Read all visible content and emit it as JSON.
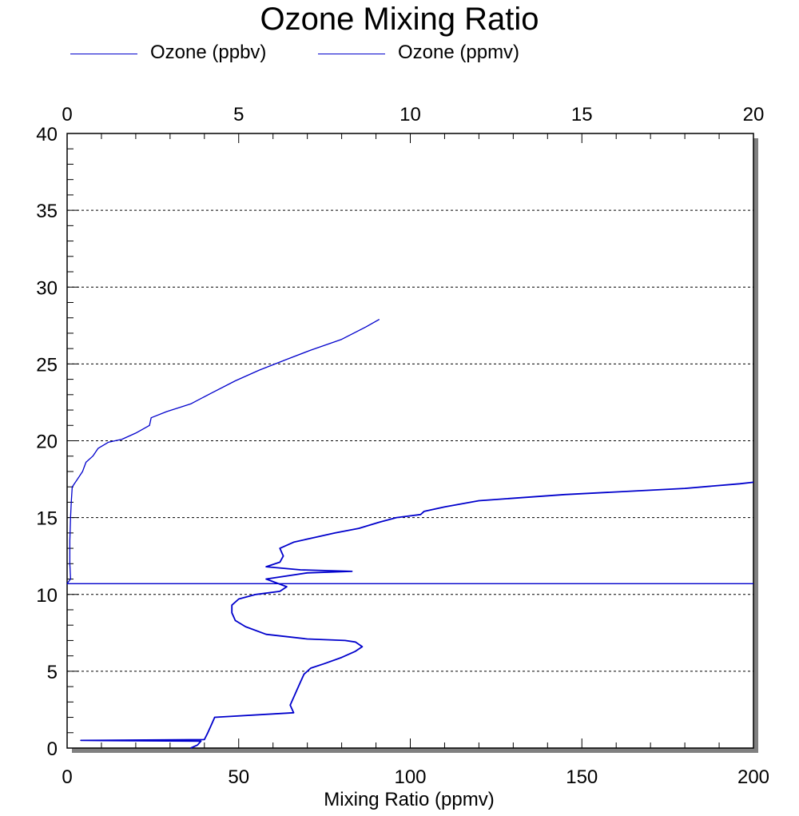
{
  "chart_data": {
    "type": "line",
    "title": "Ozone Mixing Ratio",
    "xlabel": "Mixing Ratio (ppmv)",
    "ylabel": "",
    "legend_position": "top",
    "grid": "horizontal dotted",
    "axes": {
      "x_bottom": {
        "range": [
          0,
          200
        ],
        "ticks": [
          0,
          50,
          100,
          150,
          200
        ],
        "tick_labels": [
          "0",
          "50",
          "100",
          "150",
          "200"
        ]
      },
      "x_top": {
        "range": [
          0,
          20
        ],
        "ticks": [
          0,
          5,
          10,
          15,
          20
        ],
        "tick_labels": [
          "0",
          "5",
          "10",
          "15",
          "20"
        ]
      },
      "y": {
        "range": [
          0,
          40
        ],
        "ticks": [
          0,
          5,
          10,
          15,
          20,
          25,
          30,
          35,
          40
        ],
        "tick_labels": [
          "0",
          "5",
          "10",
          "15",
          "20",
          "25",
          "30",
          "35",
          "40"
        ]
      }
    },
    "series": [
      {
        "name": "Ozone (ppbv)",
        "color": "#0000cc",
        "x_axis": "bottom",
        "points": [
          [
            36,
            0.0
          ],
          [
            38,
            0.2
          ],
          [
            39,
            0.45
          ],
          [
            4,
            0.5
          ],
          [
            40,
            0.55
          ],
          [
            41,
            1.0
          ],
          [
            42,
            1.5
          ],
          [
            43,
            2.0
          ],
          [
            66,
            2.3
          ],
          [
            65,
            2.8
          ],
          [
            66,
            3.3
          ],
          [
            67,
            3.8
          ],
          [
            68,
            4.3
          ],
          [
            69,
            4.8
          ],
          [
            71,
            5.2
          ],
          [
            75,
            5.5
          ],
          [
            80,
            5.9
          ],
          [
            84,
            6.3
          ],
          [
            86,
            6.6
          ],
          [
            84,
            6.9
          ],
          [
            81,
            7.0
          ],
          [
            70,
            7.1
          ],
          [
            58,
            7.4
          ],
          [
            52,
            7.9
          ],
          [
            49,
            8.3
          ],
          [
            48,
            8.8
          ],
          [
            48,
            9.3
          ],
          [
            50,
            9.7
          ],
          [
            55,
            10.0
          ],
          [
            62,
            10.2
          ],
          [
            64,
            10.5
          ],
          [
            58,
            11.0
          ],
          [
            70,
            11.4
          ],
          [
            83,
            11.5
          ],
          [
            68,
            11.6
          ],
          [
            58,
            11.8
          ],
          [
            62,
            12.1
          ],
          [
            63,
            12.5
          ],
          [
            62,
            13.0
          ],
          [
            66,
            13.4
          ],
          [
            72,
            13.7
          ],
          [
            78,
            14.0
          ],
          [
            85,
            14.3
          ],
          [
            91,
            14.7
          ],
          [
            96,
            15.0
          ],
          [
            103,
            15.2
          ],
          [
            104,
            15.4
          ],
          [
            110,
            15.7
          ],
          [
            120,
            16.1
          ],
          [
            145,
            16.5
          ],
          [
            180,
            16.9
          ],
          [
            196,
            17.2
          ],
          [
            200,
            17.3
          ]
        ]
      },
      {
        "name": "Ozone (ppmv)",
        "color": "#0000cc",
        "x_axis": "top",
        "points": [
          [
            0.0,
            10.7
          ],
          [
            0.1,
            11.0
          ],
          [
            0.08,
            12.0
          ],
          [
            0.08,
            13.5
          ],
          [
            0.1,
            15.0
          ],
          [
            0.12,
            16.0
          ],
          [
            0.15,
            17.0
          ],
          [
            0.3,
            17.5
          ],
          [
            0.45,
            18.0
          ],
          [
            0.55,
            18.6
          ],
          [
            0.75,
            19.0
          ],
          [
            0.9,
            19.5
          ],
          [
            1.2,
            19.9
          ],
          [
            1.6,
            20.1
          ],
          [
            2.0,
            20.5
          ],
          [
            2.4,
            21.0
          ],
          [
            2.45,
            21.5
          ],
          [
            2.9,
            21.9
          ],
          [
            3.6,
            22.4
          ],
          [
            4.2,
            23.1
          ],
          [
            4.9,
            23.9
          ],
          [
            5.6,
            24.6
          ],
          [
            6.4,
            25.3
          ],
          [
            7.1,
            25.9
          ],
          [
            8.0,
            26.6
          ],
          [
            8.7,
            27.4
          ],
          [
            9.1,
            27.9
          ]
        ]
      },
      {
        "name": "",
        "color": "#0000cc",
        "x_axis": "bottom",
        "points": [
          [
            0,
            10.7
          ],
          [
            200,
            10.7
          ]
        ]
      }
    ]
  }
}
